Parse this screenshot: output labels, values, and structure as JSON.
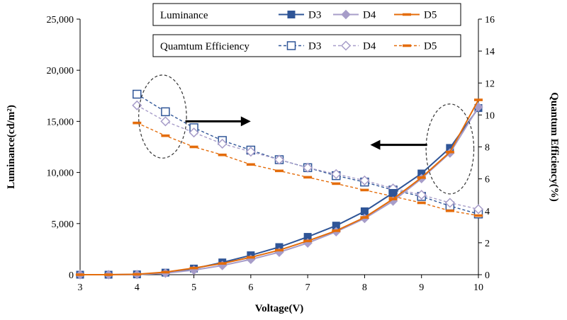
{
  "chart_data": {
    "type": "line",
    "xlabel": "Voltage(V)",
    "ylabel_left": "Luminance(cd/m²)",
    "ylabel_right": "Quantum Efficiency(%)",
    "xlim": [
      3,
      10
    ],
    "xticks": [
      "3",
      "4",
      "5",
      "6",
      "7",
      "8",
      "9",
      "10"
    ],
    "ylim_left": [
      0,
      25000
    ],
    "yticks_left": [
      "0",
      "5,000",
      "10,000",
      "15,000",
      "20,000",
      "25,000"
    ],
    "ylim_right": [
      0,
      16
    ],
    "yticks_right": [
      "0",
      "2",
      "4",
      "6",
      "8",
      "10",
      "12",
      "14",
      "16"
    ],
    "x": [
      3,
      3.5,
      4,
      4.5,
      5,
      5.5,
      6,
      6.5,
      7,
      7.5,
      8,
      8.5,
      9,
      9.5,
      10
    ],
    "luminance_series": [
      {
        "name": "D3",
        "color": "#2f5597",
        "marker": "square",
        "values": [
          0,
          0,
          30,
          200,
          600,
          1200,
          1900,
          2700,
          3700,
          4800,
          6200,
          8000,
          9900,
          12400,
          16300
        ]
      },
      {
        "name": "D4",
        "color": "#a79dc9",
        "marker": "diamond",
        "values": [
          0,
          0,
          20,
          150,
          450,
          900,
          1500,
          2200,
          3100,
          4200,
          5500,
          7200,
          9400,
          11900,
          16400
        ]
      },
      {
        "name": "D5",
        "color": "#e46c0a",
        "marker": "dash",
        "values": [
          0,
          0,
          40,
          250,
          650,
          1100,
          1700,
          2400,
          3300,
          4300,
          5600,
          7400,
          9500,
          12000,
          17100
        ]
      }
    ],
    "efficiency_series": [
      {
        "name": "D3",
        "color": "#2f5597",
        "marker": "square-open",
        "x": [
          4,
          4.5,
          5,
          5.5,
          6,
          6.5,
          7,
          7.5,
          8,
          8.5,
          9,
          9.5,
          10
        ],
        "values": [
          11.3,
          10.2,
          9.2,
          8.4,
          7.8,
          7.2,
          6.7,
          6.2,
          5.8,
          5.3,
          4.9,
          4.3,
          3.8
        ]
      },
      {
        "name": "D4",
        "color": "#a79dc9",
        "marker": "diamond-open",
        "x": [
          4,
          4.5,
          5,
          5.5,
          6,
          6.5,
          7,
          7.5,
          8,
          8.5,
          9,
          9.5,
          10
        ],
        "values": [
          10.6,
          9.6,
          8.9,
          8.2,
          7.7,
          7.2,
          6.7,
          6.3,
          5.9,
          5.4,
          5.0,
          4.5,
          4.1
        ]
      },
      {
        "name": "D5",
        "color": "#e46c0a",
        "marker": "dash",
        "x": [
          4,
          4.5,
          5,
          5.5,
          6,
          6.5,
          7,
          7.5,
          8,
          8.5,
          9,
          9.5,
          10
        ],
        "values": [
          9.5,
          8.7,
          8.0,
          7.5,
          6.9,
          6.5,
          6.1,
          5.7,
          5.3,
          4.9,
          4.5,
          4.0,
          3.7
        ]
      }
    ],
    "legend": {
      "luminance_title": "Luminance",
      "efficiency_title": "Quamtum Efficiency",
      "entries": [
        "D3",
        "D4",
        "D5"
      ]
    },
    "annotations": [
      {
        "type": "ellipse",
        "note": "dashed ellipse around efficiency points near 4.5 V",
        "cx": 4.45,
        "cy_right": 9.9,
        "rx_v": 0.42,
        "ry_right": 2.6
      },
      {
        "type": "ellipse",
        "note": "dashed ellipse around luminance points near 9.5 V",
        "cx": 9.5,
        "cy_left": 12300,
        "rx_v": 0.42,
        "ry_left": 4400
      },
      {
        "type": "arrow",
        "direction": "right",
        "from_x": 4.85,
        "to_x": 5.9,
        "y_left": 15000
      },
      {
        "type": "arrow",
        "direction": "left",
        "from_x": 9.1,
        "to_x": 8.2,
        "y_left": 12700
      }
    ]
  }
}
